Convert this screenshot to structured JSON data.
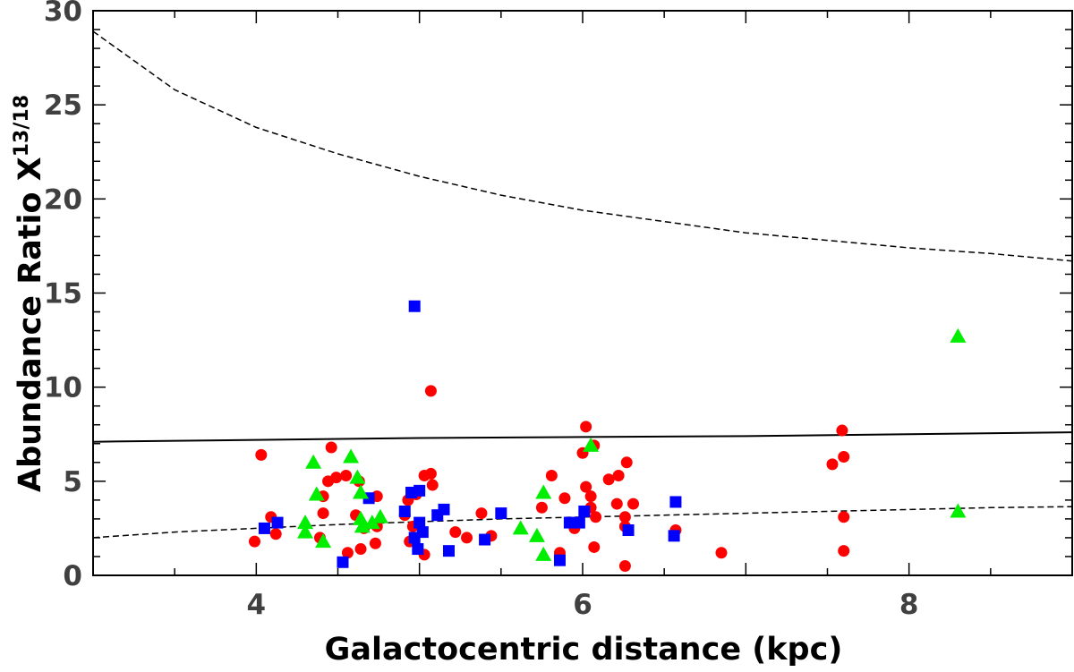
{
  "chart_data": {
    "type": "scatter",
    "title": "",
    "xlabel": "Galactocentric distance (kpc)",
    "ylabel_main": "Abundance Ratio X",
    "ylabel_sup": "13/18",
    "xlim": [
      3,
      9
    ],
    "ylim": [
      0,
      30
    ],
    "x_ticks": [
      4,
      6,
      8
    ],
    "x_tick_labels": [
      "4",
      "6",
      "8"
    ],
    "y_ticks": [
      0,
      5,
      10,
      15,
      20,
      25,
      30
    ],
    "y_tick_labels": [
      "0",
      "5",
      "10",
      "15",
      "20",
      "25",
      "30"
    ],
    "grid": false,
    "series": [
      {
        "name": "circles",
        "marker": "circle",
        "color": "#ff0000",
        "points": [
          [
            4.03,
            6.4
          ],
          [
            3.99,
            1.8
          ],
          [
            4.12,
            2.2
          ],
          [
            4.09,
            3.1
          ],
          [
            4.41,
            4.2
          ],
          [
            4.44,
            5.0
          ],
          [
            4.46,
            6.8
          ],
          [
            4.49,
            5.2
          ],
          [
            4.55,
            5.3
          ],
          [
            4.39,
            2.0
          ],
          [
            4.41,
            3.3
          ],
          [
            4.56,
            1.2
          ],
          [
            4.61,
            3.2
          ],
          [
            4.63,
            5.0
          ],
          [
            4.66,
            2.5
          ],
          [
            4.64,
            1.4
          ],
          [
            4.74,
            4.2
          ],
          [
            4.74,
            2.6
          ],
          [
            4.73,
            1.7
          ],
          [
            4.91,
            3.2
          ],
          [
            4.93,
            4.0
          ],
          [
            4.94,
            1.8
          ],
          [
            4.96,
            2.6
          ],
          [
            4.98,
            4.3
          ],
          [
            5.03,
            5.3
          ],
          [
            5.07,
            5.4
          ],
          [
            5.08,
            4.8
          ],
          [
            5.03,
            1.1
          ],
          [
            5.07,
            9.8
          ],
          [
            5.22,
            2.3
          ],
          [
            5.29,
            2.0
          ],
          [
            5.38,
            3.3
          ],
          [
            5.44,
            2.1
          ],
          [
            5.75,
            3.6
          ],
          [
            5.81,
            5.3
          ],
          [
            5.86,
            1.2
          ],
          [
            5.89,
            4.1
          ],
          [
            5.95,
            2.5
          ],
          [
            6.0,
            6.5
          ],
          [
            6.02,
            4.7
          ],
          [
            6.02,
            7.9
          ],
          [
            6.05,
            4.2
          ],
          [
            6.05,
            3.6
          ],
          [
            6.08,
            3.1
          ],
          [
            6.07,
            6.9
          ],
          [
            6.07,
            1.5
          ],
          [
            6.16,
            5.1
          ],
          [
            6.21,
            3.8
          ],
          [
            6.22,
            5.3
          ],
          [
            6.26,
            3.1
          ],
          [
            6.27,
            6.0
          ],
          [
            6.26,
            2.6
          ],
          [
            6.26,
            0.5
          ],
          [
            6.31,
            3.8
          ],
          [
            6.57,
            2.4
          ],
          [
            6.85,
            1.2
          ],
          [
            7.53,
            5.9
          ],
          [
            7.59,
            7.7
          ],
          [
            7.6,
            6.3
          ],
          [
            7.6,
            3.1
          ],
          [
            7.6,
            1.3
          ]
        ]
      },
      {
        "name": "squares",
        "marker": "square",
        "color": "#0000ff",
        "points": [
          [
            4.05,
            2.5
          ],
          [
            4.13,
            2.8
          ],
          [
            4.53,
            0.7
          ],
          [
            4.69,
            4.1
          ],
          [
            4.91,
            3.4
          ],
          [
            4.95,
            4.4
          ],
          [
            4.97,
            14.3
          ],
          [
            4.97,
            2.0
          ],
          [
            5.0,
            4.5
          ],
          [
            5.0,
            2.8
          ],
          [
            4.99,
            1.4
          ],
          [
            5.02,
            2.3
          ],
          [
            5.11,
            3.2
          ],
          [
            5.15,
            3.5
          ],
          [
            5.18,
            1.3
          ],
          [
            5.4,
            1.9
          ],
          [
            5.5,
            3.3
          ],
          [
            5.86,
            0.8
          ],
          [
            5.92,
            2.8
          ],
          [
            5.98,
            2.8
          ],
          [
            6.01,
            3.4
          ],
          [
            6.28,
            2.4
          ],
          [
            6.56,
            2.1
          ],
          [
            6.57,
            3.9
          ]
        ]
      },
      {
        "name": "triangles",
        "marker": "triangle",
        "color": "#00ee00",
        "points": [
          [
            4.3,
            2.8
          ],
          [
            4.3,
            2.3
          ],
          [
            4.35,
            6.0
          ],
          [
            4.37,
            4.3
          ],
          [
            4.41,
            1.8
          ],
          [
            4.58,
            6.3
          ],
          [
            4.62,
            5.2
          ],
          [
            4.64,
            4.4
          ],
          [
            4.64,
            3.0
          ],
          [
            4.65,
            2.6
          ],
          [
            4.71,
            2.8
          ],
          [
            4.76,
            3.1
          ],
          [
            5.62,
            2.5
          ],
          [
            5.72,
            2.1
          ],
          [
            5.76,
            1.1
          ],
          [
            5.76,
            4.4
          ],
          [
            6.05,
            6.9
          ],
          [
            8.3,
            12.7
          ],
          [
            8.3,
            3.4
          ]
        ]
      }
    ],
    "curves": [
      {
        "name": "upper dashed curve",
        "style": "dashed",
        "x": [
          3.0,
          3.5,
          4.0,
          4.5,
          5.0,
          5.5,
          6.0,
          6.5,
          7.0,
          7.5,
          8.0,
          8.5,
          9.0
        ],
        "y": [
          28.9,
          25.8,
          23.8,
          22.4,
          21.2,
          20.2,
          19.4,
          18.8,
          18.2,
          17.8,
          17.4,
          17.1,
          16.7
        ]
      },
      {
        "name": "solid line",
        "style": "solid",
        "x": [
          3.0,
          4.0,
          5.0,
          6.0,
          7.0,
          8.0,
          9.0
        ],
        "y": [
          7.1,
          7.2,
          7.3,
          7.35,
          7.4,
          7.5,
          7.6
        ]
      },
      {
        "name": "lower dashed curve",
        "style": "dashed",
        "x": [
          3.0,
          3.5,
          4.0,
          4.5,
          5.0,
          5.5,
          6.0,
          6.5,
          7.0,
          7.5,
          8.0,
          8.5,
          9.0
        ],
        "y": [
          2.0,
          2.3,
          2.5,
          2.7,
          2.85,
          3.0,
          3.1,
          3.2,
          3.3,
          3.4,
          3.5,
          3.6,
          3.65
        ]
      }
    ]
  }
}
